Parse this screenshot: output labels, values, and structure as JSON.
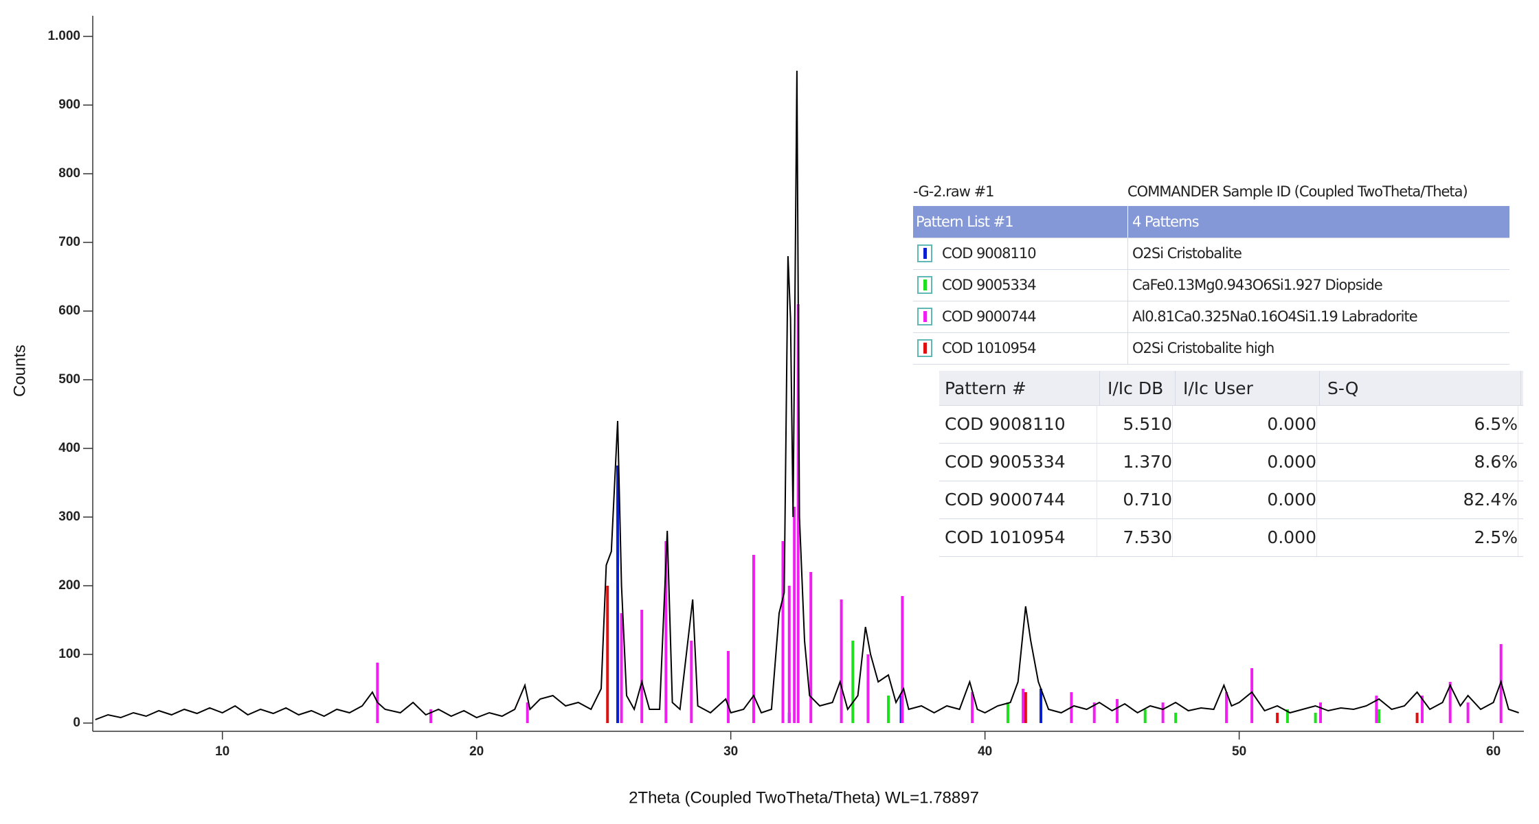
{
  "chart_data": {
    "type": "xrd",
    "xlabel": "2Theta (Coupled TwoTheta/Theta) WL=1.78897",
    "ylabel": "Counts",
    "xlim": [
      4.9,
      61.2
    ],
    "ylim": [
      -12,
      1030
    ],
    "xticks": [
      10,
      20,
      30,
      40,
      50,
      60
    ],
    "yticks": [
      0,
      100,
      200,
      300,
      400,
      500,
      600,
      700,
      800,
      900,
      {
        "value": 1000,
        "label": "1.000"
      }
    ],
    "series": [
      {
        "color": "#000000",
        "x": [
          5,
          5.5,
          6,
          6.5,
          7,
          7.5,
          8,
          8.5,
          9,
          9.5,
          10,
          10.5,
          11,
          11.5,
          12,
          12.5,
          13,
          13.5,
          14,
          14.5,
          15,
          15.5,
          15.9,
          16.1,
          16.4,
          17,
          17.5,
          18,
          18.5,
          19,
          19.5,
          20,
          20.5,
          21,
          21.5,
          21.9,
          22.1,
          22.5,
          23,
          23.5,
          24,
          24.5,
          24.9,
          25.1,
          25.3,
          25.55,
          25.7,
          25.9,
          26.2,
          26.5,
          26.8,
          27.2,
          27.5,
          27.7,
          28,
          28.5,
          28.7,
          29.2,
          29.8,
          30,
          30.5,
          30.9,
          31.2,
          31.6,
          31.9,
          32.1,
          32.25,
          32.35,
          32.45,
          32.6,
          32.7,
          32.9,
          33.1,
          33.5,
          34,
          34.3,
          34.6,
          35,
          35.3,
          35.5,
          35.8,
          36.2,
          36.5,
          36.8,
          37,
          37.5,
          38,
          38.5,
          39,
          39.4,
          39.7,
          40,
          40.5,
          41,
          41.3,
          41.6,
          41.8,
          42.1,
          42.5,
          43,
          43.5,
          44,
          44.5,
          45,
          45.5,
          46,
          46.5,
          47,
          47.5,
          48,
          48.5,
          49,
          49.4,
          49.7,
          50,
          50.5,
          51,
          51.5,
          52,
          52.5,
          53,
          53.5,
          54,
          54.5,
          55,
          55.5,
          56,
          56.5,
          57,
          57.5,
          58,
          58.3,
          58.7,
          59,
          59.5,
          60,
          60.3,
          60.6,
          61
        ],
        "values": [
          5,
          12,
          8,
          15,
          10,
          18,
          12,
          20,
          14,
          22,
          15,
          25,
          12,
          20,
          14,
          22,
          12,
          18,
          10,
          20,
          15,
          25,
          45,
          30,
          20,
          15,
          30,
          12,
          20,
          10,
          18,
          8,
          15,
          10,
          20,
          55,
          20,
          35,
          40,
          25,
          30,
          20,
          50,
          230,
          250,
          440,
          200,
          40,
          20,
          60,
          20,
          20,
          280,
          30,
          20,
          180,
          25,
          15,
          35,
          15,
          20,
          40,
          15,
          20,
          160,
          190,
          680,
          590,
          300,
          950,
          300,
          120,
          40,
          25,
          30,
          60,
          20,
          40,
          140,
          100,
          60,
          70,
          30,
          50,
          20,
          25,
          15,
          25,
          20,
          60,
          20,
          15,
          25,
          30,
          60,
          170,
          120,
          60,
          20,
          15,
          25,
          20,
          30,
          18,
          28,
          15,
          25,
          20,
          30,
          18,
          22,
          20,
          55,
          25,
          30,
          45,
          18,
          25,
          15,
          20,
          25,
          18,
          22,
          20,
          25,
          35,
          20,
          25,
          45,
          20,
          30,
          55,
          25,
          40,
          20,
          30,
          60,
          20,
          15
        ]
      },
      {
        "name": "COD 9008110",
        "description": "O2Si Cristobalite",
        "color": "#0a1fd0",
        "x": [
          25.55,
          32.3,
          36.7,
          42.2,
          57.2
        ],
        "values": [
          375,
          15,
          40,
          50,
          30
        ]
      },
      {
        "name": "COD 9005334",
        "description": "CaFe0.13Mg0.943O6Si1.927 Diopside",
        "color": "#1ee01e",
        "x": [
          34.8,
          35.4,
          36.2,
          40.9,
          46.3,
          47.5,
          51.9,
          53,
          55.5
        ],
        "values": [
          120,
          60,
          40,
          30,
          20,
          15,
          20,
          15,
          20
        ]
      },
      {
        "name": "COD 9000744",
        "description": "Al0.81Ca0.325Na0.16O4Si1.19 Labradorite",
        "color": "#f01ef0",
        "x": [
          16.1,
          18.2,
          22,
          25.7,
          26.5,
          27.45,
          28.45,
          29.9,
          30.9,
          32.05,
          32.3,
          32.5,
          32.65,
          33.15,
          34.35,
          35.4,
          36.75,
          39.5,
          41.5,
          43.4,
          44.3,
          45.2,
          47,
          49.5,
          50.5,
          53.2,
          55.4,
          57.2,
          58.3,
          59,
          60.3
        ],
        "values": [
          88,
          20,
          30,
          160,
          165,
          265,
          120,
          105,
          245,
          265,
          200,
          315,
          610,
          220,
          180,
          100,
          185,
          45,
          50,
          45,
          30,
          35,
          30,
          45,
          80,
          30,
          40,
          40,
          60,
          30,
          115
        ]
      },
      {
        "name": "COD 1010954",
        "description": "O2Si Cristobalite high",
        "color": "#e01010",
        "x": [
          25.15,
          41.6,
          51.5,
          57
        ],
        "values": [
          200,
          45,
          15,
          15
        ]
      }
    ]
  },
  "pattern_list": {
    "file": "-G-2.raw #1",
    "sample": "COMMANDER Sample ID (Coupled TwoTheta/Theta)",
    "list": "Pattern List #1",
    "count": "4 Patterns"
  },
  "quant_table": {
    "headers": [
      "Pattern #",
      "I/Ic DB",
      "I/Ic User",
      "S-Q"
    ],
    "rows": [
      [
        "COD 9008110",
        "5.510",
        "0.000",
        "6.5%"
      ],
      [
        "COD 9005334",
        "1.370",
        "0.000",
        "8.6%"
      ],
      [
        "COD 9000744",
        "0.710",
        "0.000",
        "82.4%"
      ],
      [
        "COD 1010954",
        "7.530",
        "0.000",
        "2.5%"
      ]
    ]
  }
}
